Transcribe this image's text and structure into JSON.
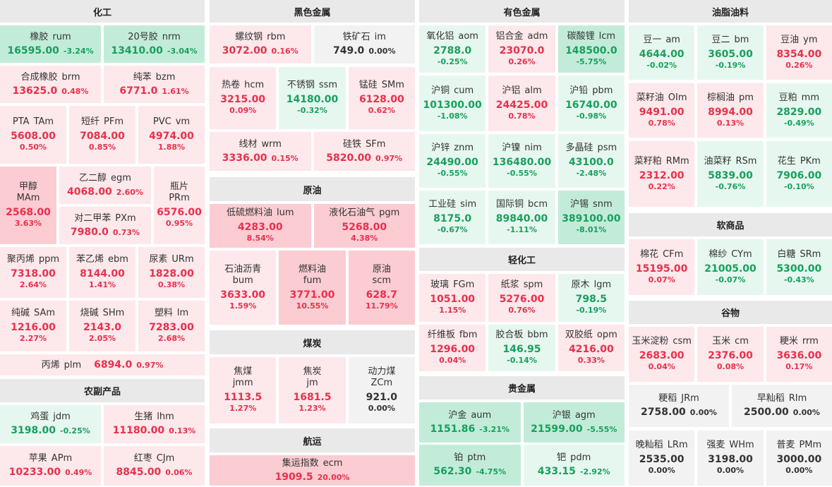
{
  "sections": [
    {
      "title": "化工",
      "items": [
        {
          "name": "橡胶",
          "code": "rum",
          "price": "16595.00",
          "change": "-3.24%"
        },
        {
          "name": "20号胶",
          "code": "nrm",
          "price": "13410.00",
          "change": "-3.04%"
        },
        {
          "name": "合成橡胶",
          "code": "brm",
          "price": "13625.0",
          "change": "0.48%"
        },
        {
          "name": "纯苯",
          "code": "bzm",
          "price": "6771.0",
          "change": "1.61%"
        },
        {
          "name": "PTA",
          "code": "TAm",
          "price": "5608.00",
          "change": "0.50%"
        },
        {
          "name": "短纤",
          "code": "PFm",
          "price": "7084.00",
          "change": "0.85%"
        },
        {
          "name": "PVC",
          "code": "vm",
          "price": "4974.00",
          "change": "1.88%"
        },
        {
          "name": "甲醇",
          "code": "MAm",
          "price": "2568.00",
          "change": "3.63%"
        },
        {
          "name": "乙二醇",
          "code": "egm",
          "price": "4068.00",
          "change": "2.60%"
        },
        {
          "name": "对二甲苯",
          "code": "PXm",
          "price": "7980.0",
          "change": "0.73%"
        },
        {
          "name": "瓶片",
          "code": "PRm",
          "price": "6576.00",
          "change": "0.95%"
        },
        {
          "name": "聚丙烯",
          "code": "ppm",
          "price": "7318.00",
          "change": "2.64%"
        },
        {
          "name": "苯乙烯",
          "code": "ebm",
          "price": "8144.00",
          "change": "1.41%"
        },
        {
          "name": "尿素",
          "code": "URm",
          "price": "1828.00",
          "change": "0.38%"
        },
        {
          "name": "纯碱",
          "code": "SAm",
          "price": "1216.00",
          "change": "2.27%"
        },
        {
          "name": "烧碱",
          "code": "SHm",
          "price": "2143.0",
          "change": "2.05%"
        },
        {
          "name": "塑料",
          "code": "lm",
          "price": "7283.00",
          "change": "2.68%"
        },
        {
          "name": "丙烯",
          "code": "plm",
          "price": "6894.0",
          "change": "0.97%"
        }
      ]
    },
    {
      "title": "农副产品",
      "items": [
        {
          "name": "鸡蛋",
          "code": "jdm",
          "price": "3198.00",
          "change": "-0.25%"
        },
        {
          "name": "生猪",
          "code": "lhm",
          "price": "11180.00",
          "change": "0.13%"
        },
        {
          "name": "苹果",
          "code": "APm",
          "price": "10233.00",
          "change": "0.49%"
        },
        {
          "name": "红枣",
          "code": "CJm",
          "price": "8845.00",
          "change": "0.06%"
        }
      ]
    },
    {
      "title": "黑色金属",
      "items": [
        {
          "name": "螺纹钢",
          "code": "rbm",
          "price": "3072.00",
          "change": "0.16%"
        },
        {
          "name": "铁矿石",
          "code": "im",
          "price": "749.0",
          "change": "0.00%"
        },
        {
          "name": "热卷",
          "code": "hcm",
          "price": "3215.00",
          "change": "0.09%"
        },
        {
          "name": "不锈钢",
          "code": "ssm",
          "price": "14180.00",
          "change": "-0.32%"
        },
        {
          "name": "锰硅",
          "code": "SMm",
          "price": "6128.00",
          "change": "0.62%"
        },
        {
          "name": "线材",
          "code": "wrm",
          "price": "3336.00",
          "change": "0.15%"
        },
        {
          "name": "硅铁",
          "code": "SFm",
          "price": "5820.00",
          "change": "0.97%"
        }
      ]
    },
    {
      "title": "原油",
      "items": [
        {
          "name": "低硫燃料油",
          "code": "lum",
          "price": "4283.00",
          "change": "8.54%"
        },
        {
          "name": "液化石油气",
          "code": "pgm",
          "price": "5268.00",
          "change": "4.38%"
        },
        {
          "name": "石油沥青",
          "code": "bum",
          "price": "3633.00",
          "change": "1.59%"
        },
        {
          "name": "燃料油",
          "code": "fum",
          "price": "3771.00",
          "change": "10.55%"
        },
        {
          "name": "原油",
          "code": "scm",
          "price": "628.7",
          "change": "11.79%"
        }
      ]
    },
    {
      "title": "煤炭",
      "items": [
        {
          "name": "焦煤",
          "code": "jmm",
          "price": "1113.5",
          "change": "1.27%"
        },
        {
          "name": "焦炭",
          "code": "jm",
          "price": "1681.5",
          "change": "1.23%"
        },
        {
          "name": "动力煤",
          "code": "ZCm",
          "price": "921.0",
          "change": "0.00%"
        }
      ]
    },
    {
      "title": "航运",
      "items": [
        {
          "name": "集运指数",
          "code": "ecm",
          "price": "1909.5",
          "change": "20.00%"
        }
      ]
    },
    {
      "title": "有色金属",
      "items": [
        {
          "name": "氧化铝",
          "code": "aom",
          "price": "2788.0",
          "change": "-0.25%"
        },
        {
          "name": "铝合金",
          "code": "adm",
          "price": "23070.0",
          "change": "0.26%"
        },
        {
          "name": "碳酸锂",
          "code": "lcm",
          "price": "148500.0",
          "change": "-5.75%"
        },
        {
          "name": "沪铜",
          "code": "cum",
          "price": "101300.00",
          "change": "-1.08%"
        },
        {
          "name": "沪铝",
          "code": "alm",
          "price": "24425.00",
          "change": "0.78%"
        },
        {
          "name": "沪铅",
          "code": "pbm",
          "price": "16740.00",
          "change": "-0.98%"
        },
        {
          "name": "沪锌",
          "code": "znm",
          "price": "24490.00",
          "change": "-0.55%"
        },
        {
          "name": "沪镍",
          "code": "nim",
          "price": "136480.00",
          "change": "-0.55%"
        },
        {
          "name": "多晶硅",
          "code": "psm",
          "price": "43100.0",
          "change": "-2.48%"
        },
        {
          "name": "工业硅",
          "code": "sim",
          "price": "8175.0",
          "change": "-0.67%"
        },
        {
          "name": "国际铜",
          "code": "bcm",
          "price": "89840.00",
          "change": "-1.11%"
        },
        {
          "name": "沪锡",
          "code": "snm",
          "price": "389100.00",
          "change": "-8.01%"
        }
      ]
    },
    {
      "title": "轻化工",
      "items": [
        {
          "name": "玻璃",
          "code": "FGm",
          "price": "1051.00",
          "change": "1.15%"
        },
        {
          "name": "纸浆",
          "code": "spm",
          "price": "5276.00",
          "change": "0.76%"
        },
        {
          "name": "原木",
          "code": "lgm",
          "price": "798.5",
          "change": "-0.19%"
        },
        {
          "name": "纤维板",
          "code": "fbm",
          "price": "1296.00",
          "change": "0.04%"
        },
        {
          "name": "胶合板",
          "code": "bbm",
          "price": "146.95",
          "change": "-0.14%"
        },
        {
          "name": "双胶纸",
          "code": "opm",
          "price": "4216.00",
          "change": "0.33%"
        }
      ]
    },
    {
      "title": "贵金属",
      "items": [
        {
          "name": "沪金",
          "code": "aum",
          "price": "1151.86",
          "change": "-3.21%"
        },
        {
          "name": "沪银",
          "code": "agm",
          "price": "21599.00",
          "change": "-5.55%"
        },
        {
          "name": "铂",
          "code": "ptm",
          "price": "562.30",
          "change": "-4.75%"
        },
        {
          "name": "钯",
          "code": "pdm",
          "price": "433.15",
          "change": "-2.92%"
        }
      ]
    },
    {
      "title": "油脂油料",
      "items": [
        {
          "name": "豆一",
          "code": "am",
          "price": "4644.00",
          "change": "-0.02%"
        },
        {
          "name": "豆二",
          "code": "bm",
          "price": "3605.00",
          "change": "-0.19%"
        },
        {
          "name": "豆油",
          "code": "ym",
          "price": "8354.00",
          "change": "0.26%"
        },
        {
          "name": "菜籽油",
          "code": "OIm",
          "price": "9491.00",
          "change": "0.78%"
        },
        {
          "name": "棕榈油",
          "code": "pm",
          "price": "8994.00",
          "change": "0.13%"
        },
        {
          "name": "豆粕",
          "code": "mm",
          "price": "2829.00",
          "change": "-0.49%"
        },
        {
          "name": "菜籽粕",
          "code": "RMm",
          "price": "2312.00",
          "change": "0.22%"
        },
        {
          "name": "油菜籽",
          "code": "RSm",
          "price": "5839.00",
          "change": "-0.76%"
        },
        {
          "name": "花生",
          "code": "PKm",
          "price": "7906.00",
          "change": "-0.10%"
        }
      ]
    },
    {
      "title": "软商品",
      "items": [
        {
          "name": "棉花",
          "code": "CFm",
          "price": "15195.00",
          "change": "0.07%"
        },
        {
          "name": "棉纱",
          "code": "CYm",
          "price": "21005.00",
          "change": "-0.07%"
        },
        {
          "name": "白糖",
          "code": "SRm",
          "price": "5300.00",
          "change": "-0.43%"
        }
      ]
    },
    {
      "title": "谷物",
      "items": [
        {
          "name": "玉米淀粉",
          "code": "csm",
          "price": "2683.00",
          "change": "0.04%"
        },
        {
          "name": "玉米",
          "code": "cm",
          "price": "2376.00",
          "change": "0.08%"
        },
        {
          "name": "粳米",
          "code": "rrm",
          "price": "3636.00",
          "change": "0.17%"
        },
        {
          "name": "粳稻",
          "code": "JRm",
          "price": "2758.00",
          "change": "0.00%"
        },
        {
          "name": "早籼稻",
          "code": "RIm",
          "price": "2500.00",
          "change": "0.00%"
        },
        {
          "name": "晚籼稻",
          "code": "LRm",
          "price": "2535.00",
          "change": "0.00%"
        },
        {
          "name": "强麦",
          "code": "WHm",
          "price": "3198.00",
          "change": "0.00%"
        },
        {
          "name": "普麦",
          "code": "PMm",
          "price": "3000.00",
          "change": "0.00%"
        }
      ]
    }
  ]
}
